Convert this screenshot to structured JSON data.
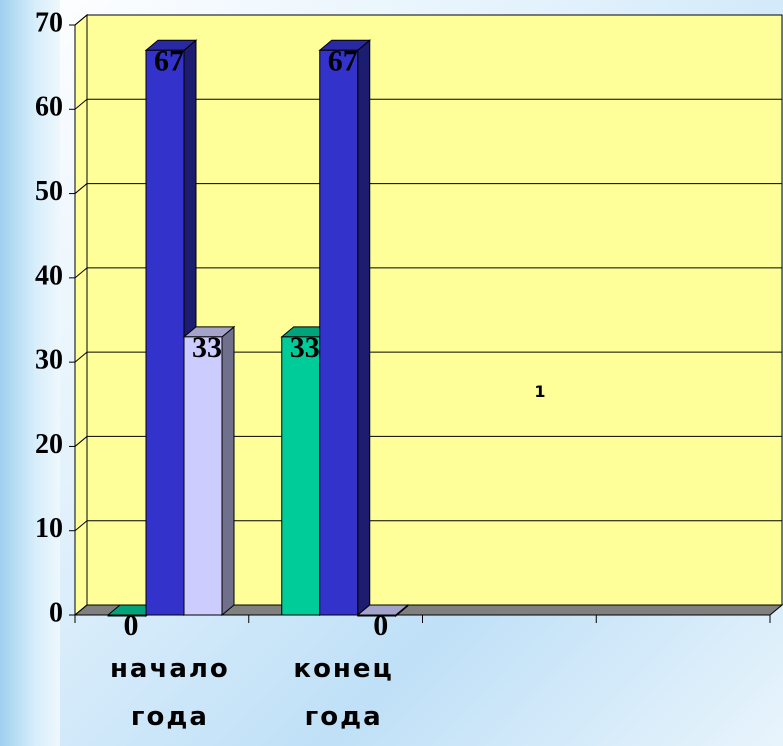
{
  "chart_data": {
    "type": "bar3d",
    "categories": [
      "начало года",
      "конец года",
      null,
      null
    ],
    "series": [
      {
        "color": "#00cc99",
        "values": [
          0,
          33,
          null,
          null
        ]
      },
      {
        "color": "#3333cc",
        "values": [
          67,
          67,
          null,
          null
        ]
      },
      {
        "color": "#ccccff",
        "values": [
          33,
          0,
          null,
          null
        ]
      }
    ],
    "ylim": [
      0,
      70
    ],
    "yticks": [
      0,
      10,
      20,
      30,
      40,
      50,
      60,
      70
    ],
    "grid": true,
    "wall_color": "#ffff99",
    "annotation": "1"
  }
}
